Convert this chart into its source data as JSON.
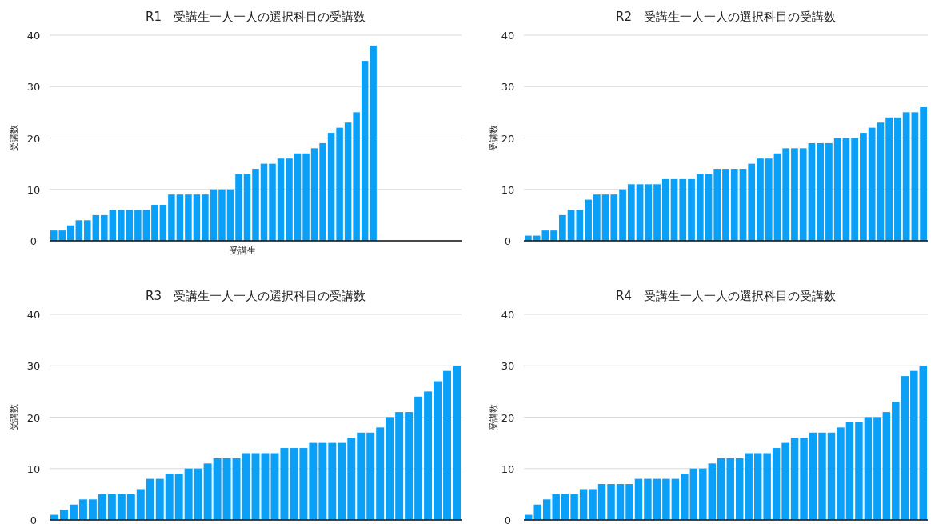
{
  "chart_data": [
    {
      "type": "bar",
      "title": "R1　受講生一人一人の選択科目の受講数",
      "xlabel": "受講生",
      "ylabel": "受講数",
      "color": "#0aa0f8",
      "ylim": [
        0,
        40
      ],
      "yticks": [
        0,
        10,
        20,
        30,
        40
      ],
      "grid": "y",
      "categories": [
        null,
        null,
        null,
        null,
        null,
        null,
        null,
        null,
        null,
        null,
        null,
        null,
        null,
        null,
        null,
        null,
        null,
        null,
        null,
        null,
        null,
        null,
        null,
        null,
        null,
        null,
        null,
        null,
        null,
        null,
        null,
        null,
        null,
        null,
        null,
        null,
        null,
        null,
        null,
        null,
        null,
        null,
        null,
        null,
        null,
        null,
        null,
        null,
        null
      ],
      "values": [
        2,
        2,
        3,
        4,
        4,
        5,
        5,
        6,
        6,
        6,
        6,
        6,
        7,
        7,
        9,
        9,
        9,
        9,
        9,
        10,
        10,
        10,
        13,
        13,
        14,
        15,
        15,
        16,
        16,
        17,
        17,
        18,
        19,
        21,
        22,
        23,
        25,
        35,
        38,
        null,
        null,
        null,
        null,
        null,
        null,
        null,
        null,
        null,
        null
      ]
    },
    {
      "type": "bar",
      "title": "R2　受講生一人一人の選択科目の受講数",
      "ylabel": "受講数",
      "color": "#0aa0f8",
      "ylim": [
        0,
        40
      ],
      "yticks": [
        0,
        10,
        20,
        30,
        40
      ],
      "grid": "y",
      "categories": [
        null,
        null,
        null,
        null,
        null,
        null,
        null,
        null,
        null,
        null,
        null,
        null,
        null,
        null,
        null,
        null,
        null,
        null,
        null,
        null,
        null,
        null,
        null,
        null,
        null,
        null,
        null,
        null,
        null,
        null,
        null,
        null,
        null,
        null,
        null,
        null,
        null,
        null,
        null,
        null,
        null,
        null,
        null,
        null,
        null,
        null,
        null
      ],
      "values": [
        1,
        1,
        2,
        2,
        5,
        6,
        6,
        8,
        9,
        9,
        9,
        10,
        11,
        11,
        11,
        11,
        12,
        12,
        12,
        12,
        13,
        13,
        14,
        14,
        14,
        14,
        15,
        16,
        16,
        17,
        18,
        18,
        18,
        19,
        19,
        19,
        20,
        20,
        20,
        21,
        22,
        23,
        24,
        24,
        25,
        25,
        26
      ]
    },
    {
      "type": "bar",
      "title": "R3　受講生一人一人の選択科目の受講数",
      "ylabel": "受講数",
      "color": "#0aa0f8",
      "ylim": [
        0,
        40
      ],
      "yticks": [
        0,
        10,
        20,
        30,
        40
      ],
      "grid": "y",
      "categories": [
        null,
        null,
        null,
        null,
        null,
        null,
        null,
        null,
        null,
        null,
        null,
        null,
        null,
        null,
        null,
        null,
        null,
        null,
        null,
        null,
        null,
        null,
        null,
        null,
        null,
        null,
        null,
        null,
        null,
        null,
        null,
        null,
        null,
        null,
        null,
        null,
        null,
        null,
        null,
        null,
        null,
        null,
        null
      ],
      "values": [
        1,
        2,
        3,
        4,
        4,
        5,
        5,
        5,
        5,
        6,
        8,
        8,
        9,
        9,
        10,
        10,
        11,
        12,
        12,
        12,
        13,
        13,
        13,
        13,
        14,
        14,
        14,
        15,
        15,
        15,
        15,
        16,
        17,
        17,
        18,
        20,
        21,
        21,
        24,
        25,
        27,
        29,
        30
      ]
    },
    {
      "type": "bar",
      "title": "R4　受講生一人一人の選択科目の受講数",
      "ylabel": "受講数",
      "color": "#0aa0f8",
      "ylim": [
        0,
        40
      ],
      "yticks": [
        0,
        10,
        20,
        30,
        40
      ],
      "grid": "y",
      "categories": [
        null,
        null,
        null,
        null,
        null,
        null,
        null,
        null,
        null,
        null,
        null,
        null,
        null,
        null,
        null,
        null,
        null,
        null,
        null,
        null,
        null,
        null,
        null,
        null,
        null,
        null,
        null,
        null,
        null,
        null,
        null,
        null,
        null,
        null,
        null,
        null,
        null,
        null,
        null,
        null,
        null,
        null,
        null,
        null
      ],
      "values": [
        1,
        3,
        4,
        5,
        5,
        5,
        6,
        6,
        7,
        7,
        7,
        7,
        8,
        8,
        8,
        8,
        8,
        9,
        10,
        10,
        11,
        12,
        12,
        12,
        13,
        13,
        13,
        14,
        15,
        16,
        16,
        17,
        17,
        17,
        18,
        19,
        19,
        20,
        20,
        21,
        23,
        28,
        29,
        30
      ]
    }
  ]
}
